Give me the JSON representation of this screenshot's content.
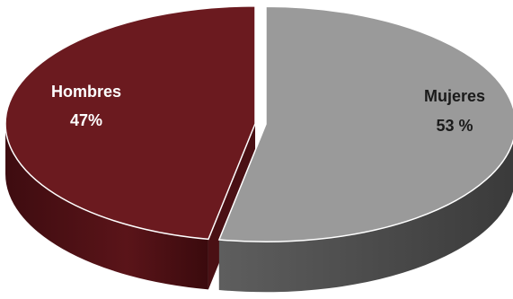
{
  "chart_data": {
    "type": "pie",
    "style": "3d-exploded",
    "slices": [
      {
        "name": "Mujeres",
        "value": 53,
        "label": "53 %",
        "color": "#9a9a9a",
        "side_color": "#4a4a4a",
        "text_color": "#1a1a1a"
      },
      {
        "name": "Hombres",
        "value": 47,
        "label": "47%",
        "color": "#6b1a1f",
        "side_color": "#4a1014",
        "text_color": "#ffffff"
      }
    ]
  }
}
